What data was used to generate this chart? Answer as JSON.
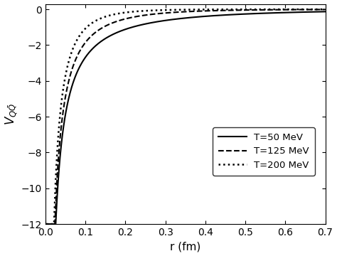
{
  "title": "",
  "xlabel": "r (fm)",
  "ylabel": "$V_{Q\\bar{Q}}$",
  "xlim": [
    0.0,
    0.7
  ],
  "ylim": [
    -12,
    0.3
  ],
  "yticks": [
    0,
    -2,
    -4,
    -6,
    -8,
    -10,
    -12
  ],
  "xticks": [
    0.0,
    0.1,
    0.2,
    0.3,
    0.4,
    0.5,
    0.6,
    0.7
  ],
  "curves": [
    {
      "label": "T=50 MeV",
      "linestyle": "solid",
      "color": "#000000",
      "linewidth": 1.5,
      "alpha": 0.32,
      "mu": 1.8
    },
    {
      "label": "T=125 MeV",
      "linestyle": "dashed",
      "color": "#000000",
      "linewidth": 1.5,
      "alpha": 0.32,
      "mu": 5.5
    },
    {
      "label": "T=200 MeV",
      "linestyle": "dotted",
      "color": "#000000",
      "linewidth": 1.8,
      "alpha": 0.32,
      "mu": 11.0
    }
  ],
  "legend_loc": "center right",
  "background_color": "#ffffff",
  "figsize": [
    4.74,
    3.6
  ],
  "dpi": 100
}
